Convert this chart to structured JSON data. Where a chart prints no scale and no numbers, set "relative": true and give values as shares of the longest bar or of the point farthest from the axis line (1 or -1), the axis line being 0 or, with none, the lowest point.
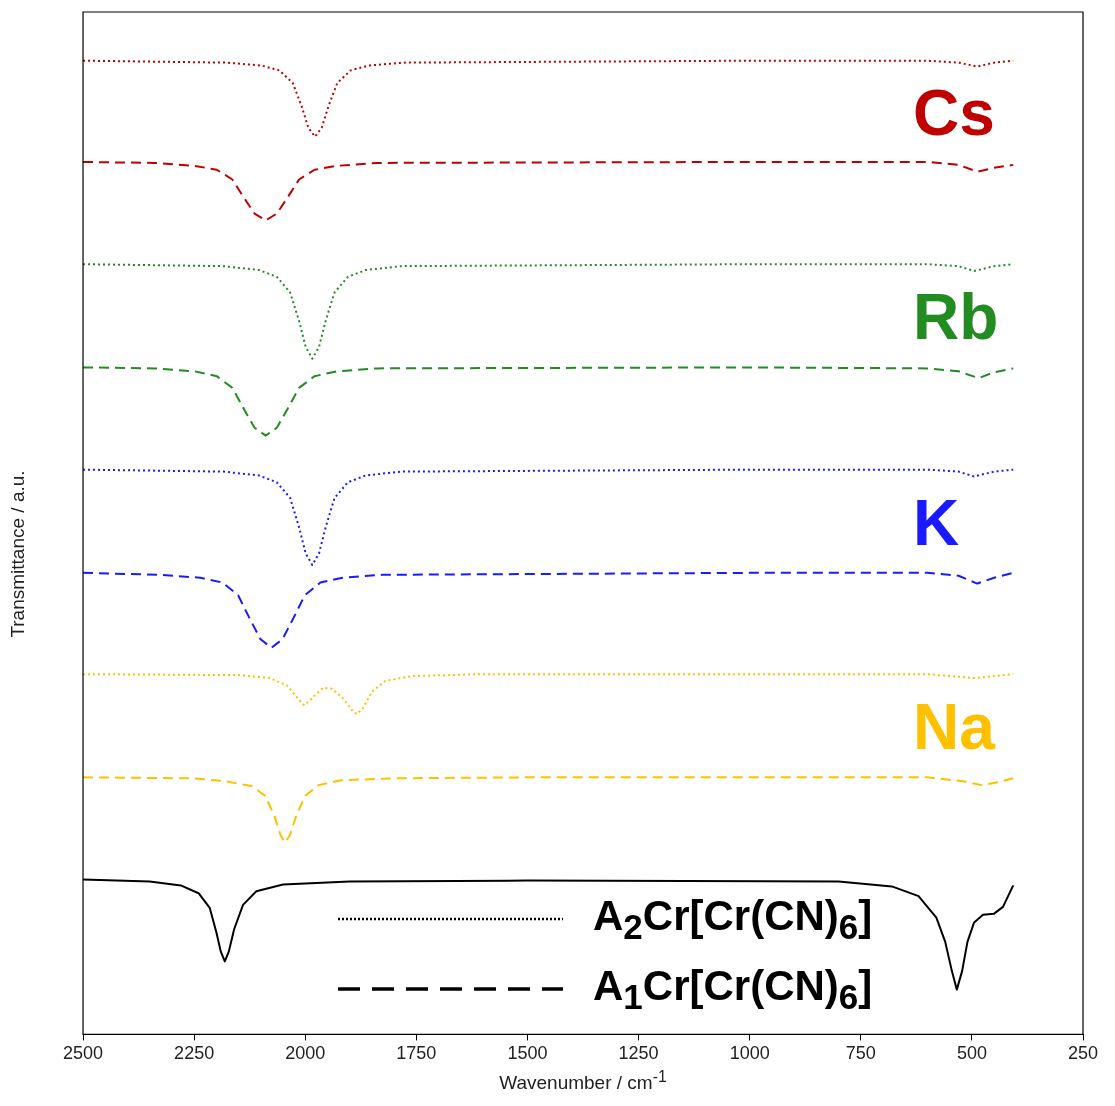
{
  "chart_data": {
    "type": "line",
    "relative": true,
    "xlabel": "Wavenumber / cm$^{-1}$",
    "ylabel": "Transmittance / a.u.",
    "xlim": [
      2500,
      250
    ],
    "xticks": [
      2500,
      2250,
      2000,
      1750,
      1500,
      1250,
      1000,
      750,
      500,
      250
    ],
    "series": [
      {
        "color": "#c00000",
        "line_style": "dotted",
        "x": [
          2500,
          2178,
          2098,
          2058,
          2028,
          2008,
          1993,
          1978,
          1963,
          1948,
          1928,
          1898,
          1858,
          1778,
          1000,
          600,
          530,
          488,
          450,
          407
        ],
        "values": [
          1.0,
          0.998,
          0.995,
          0.99,
          0.977,
          0.953,
          0.931,
          0.922,
          0.931,
          0.953,
          0.977,
          0.99,
          0.995,
          0.998,
          1.0,
          1.0,
          0.998,
          0.994,
          0.998,
          1.0
        ]
      },
      {
        "color": "#c00000",
        "line_style": "dashed",
        "x": [
          2500,
          2339,
          2249,
          2199,
          2164,
          2139,
          2114,
          2089,
          2064,
          2039,
          2014,
          1979,
          1929,
          1839,
          1000,
          600,
          530,
          488,
          450,
          407
        ],
        "values": [
          0.896,
          0.895,
          0.892,
          0.888,
          0.878,
          0.86,
          0.843,
          0.836,
          0.843,
          0.86,
          0.878,
          0.888,
          0.892,
          0.895,
          0.896,
          0.896,
          0.893,
          0.886,
          0.89,
          0.893
        ]
      },
      {
        "color": "#228b22",
        "line_style": "dotted",
        "x": [
          2500,
          2184,
          2104,
          2064,
          2034,
          2014,
          1999,
          1984,
          1969,
          1954,
          1934,
          1904,
          1864,
          1784,
          1000,
          600,
          530,
          495,
          450,
          407
        ],
        "values": [
          0.791,
          0.789,
          0.785,
          0.778,
          0.762,
          0.733,
          0.706,
          0.694,
          0.706,
          0.733,
          0.762,
          0.778,
          0.785,
          0.789,
          0.791,
          0.791,
          0.789,
          0.784,
          0.789,
          0.791
        ]
      },
      {
        "color": "#228b22",
        "line_style": "dashed",
        "x": [
          2500,
          2339,
          2249,
          2199,
          2164,
          2139,
          2114,
          2089,
          2064,
          2039,
          2014,
          1979,
          1929,
          1839,
          1000,
          600,
          530,
          485,
          450,
          407
        ],
        "values": [
          0.685,
          0.684,
          0.681,
          0.676,
          0.664,
          0.643,
          0.623,
          0.615,
          0.623,
          0.643,
          0.664,
          0.676,
          0.681,
          0.684,
          0.685,
          0.684,
          0.681,
          0.674,
          0.68,
          0.684
        ]
      },
      {
        "color": "#1a1aff",
        "line_style": "dotted",
        "x": [
          2500,
          2184,
          2104,
          2064,
          2034,
          2014,
          1999,
          1984,
          1969,
          1954,
          1934,
          1904,
          1864,
          1784,
          1000,
          600,
          530,
          495,
          450,
          407
        ],
        "values": [
          0.58,
          0.578,
          0.574,
          0.567,
          0.551,
          0.521,
          0.494,
          0.482,
          0.494,
          0.521,
          0.551,
          0.567,
          0.574,
          0.578,
          0.58,
          0.58,
          0.578,
          0.573,
          0.578,
          0.58
        ]
      },
      {
        "color": "#1a1aff",
        "line_style": "dashed",
        "x": [
          2500,
          2326,
          2236,
          2186,
          2151,
          2126,
          2101,
          2076,
          2051,
          2026,
          2001,
          1966,
          1916,
          1826,
          1000,
          600,
          530,
          488,
          450,
          407
        ],
        "values": [
          0.474,
          0.472,
          0.469,
          0.464,
          0.451,
          0.428,
          0.406,
          0.397,
          0.406,
          0.428,
          0.451,
          0.464,
          0.469,
          0.472,
          0.474,
          0.474,
          0.471,
          0.463,
          0.469,
          0.474
        ]
      },
      {
        "color": "#ffc000",
        "line_style": "dotted",
        "x": [
          2500,
          2150,
          2080,
          2040,
          2015,
          2002,
          1985,
          1960,
          1940,
          1915,
          1895,
          1884,
          1870,
          1850,
          1820,
          1760,
          1600,
          600,
          495,
          450,
          407
        ],
        "values": [
          0.37,
          0.369,
          0.366,
          0.358,
          0.344,
          0.338,
          0.345,
          0.356,
          0.355,
          0.345,
          0.333,
          0.329,
          0.335,
          0.352,
          0.363,
          0.368,
          0.37,
          0.37,
          0.366,
          0.368,
          0.37
        ]
      },
      {
        "color": "#ffc000",
        "line_style": "dashed",
        "x": [
          2500,
          2250,
          2180,
          2145,
          2120,
          2090,
          2070,
          2055,
          2046,
          2035,
          2020,
          2000,
          1970,
          1920,
          1800,
          1500,
          600,
          520,
          478,
          440,
          407
        ],
        "values": [
          0.264,
          0.263,
          0.26,
          0.257,
          0.255,
          0.245,
          0.225,
          0.204,
          0.197,
          0.204,
          0.225,
          0.245,
          0.256,
          0.261,
          0.263,
          0.264,
          0.264,
          0.26,
          0.256,
          0.259,
          0.263
        ]
      },
      {
        "color": "#000000",
        "line_style": "solid",
        "x": [
          2500,
          2350,
          2280,
          2240,
          2215,
          2200,
          2190,
          2181,
          2172,
          2160,
          2140,
          2110,
          2050,
          1900,
          1500,
          800,
          680,
          620,
          580,
          560,
          545,
          534,
          522,
          510,
          495,
          475,
          450,
          430,
          407
        ],
        "values": [
          0.159,
          0.157,
          0.153,
          0.145,
          0.13,
          0.105,
          0.085,
          0.075,
          0.085,
          0.108,
          0.133,
          0.147,
          0.154,
          0.157,
          0.158,
          0.157,
          0.152,
          0.142,
          0.12,
          0.095,
          0.065,
          0.046,
          0.065,
          0.095,
          0.115,
          0.123,
          0.124,
          0.131,
          0.153
        ]
      }
    ],
    "annotations": [
      "Cs",
      "Rb",
      "K",
      "Na",
      "A$_{2}$Cr[Cr(CN)$_{6}$]",
      "A$_{1}$Cr[Cr(CN)$_{6}$]"
    ]
  }
}
